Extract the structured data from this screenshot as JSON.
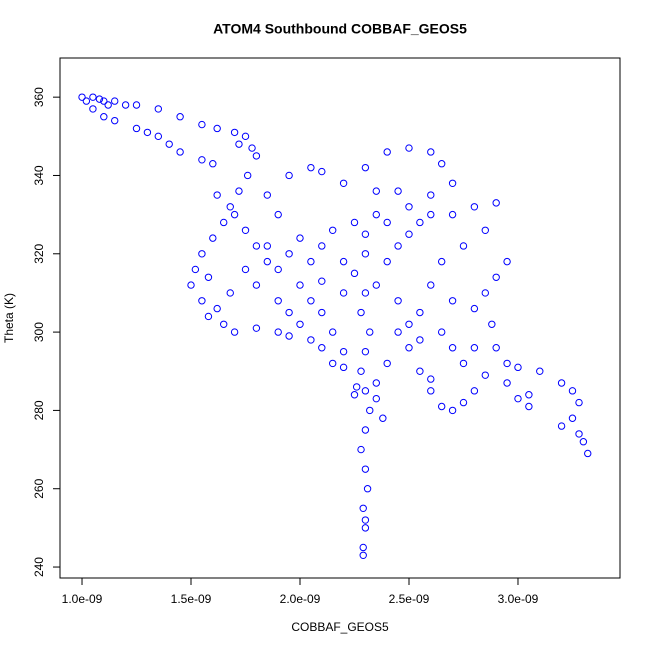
{
  "chart_data": {
    "type": "scatter",
    "title": "ATOM4 Southbound COBBAF_GEOS5",
    "xlabel": "COBBAF_GEOS5",
    "ylabel": "Theta (K)",
    "color": "#0000ff",
    "xlim": [
      8.99e-10,
      3.468e-09
    ],
    "ylim": [
      237.2,
      370
    ],
    "xticks": [
      {
        "value": 1e-09,
        "label": "1.0e-09"
      },
      {
        "value": 1.5e-09,
        "label": "1.5e-09"
      },
      {
        "value": 2e-09,
        "label": "2.0e-09"
      },
      {
        "value": 2.5e-09,
        "label": "2.5e-09"
      },
      {
        "value": 3e-09,
        "label": "3.0e-09"
      }
    ],
    "yticks": [
      240,
      260,
      280,
      300,
      320,
      340,
      360
    ],
    "x": [
      1e-09,
      1.02e-09,
      1.05e-09,
      1.08e-09,
      1.1e-09,
      1.12e-09,
      1.15e-09,
      1.2e-09,
      1.05e-09,
      1.1e-09,
      1.15e-09,
      1.25e-09,
      1.3e-09,
      1.35e-09,
      1.4e-09,
      1.45e-09,
      1.55e-09,
      1.6e-09,
      1.25e-09,
      1.35e-09,
      1.45e-09,
      1.55e-09,
      1.62e-09,
      1.7e-09,
      1.75e-09,
      1.72e-09,
      1.78e-09,
      1.8e-09,
      1.76e-09,
      1.72e-09,
      1.68e-09,
      1.65e-09,
      1.6e-09,
      1.55e-09,
      1.52e-09,
      1.5e-09,
      1.55e-09,
      1.58e-09,
      1.65e-09,
      1.7e-09,
      1.8e-09,
      1.9e-09,
      1.95e-09,
      2.05e-09,
      1.62e-09,
      1.7e-09,
      1.75e-09,
      1.8e-09,
      1.85e-09,
      1.9e-09,
      1.95e-09,
      2e-09,
      1.9e-09,
      1.85e-09,
      1.95e-09,
      2.05e-09,
      2.1e-09,
      2.2e-09,
      2.3e-09,
      2.35e-09,
      2.3e-09,
      2.25e-09,
      2.3e-09,
      2.28e-09,
      2.32e-09,
      2.3e-09,
      2.28e-09,
      2.3e-09,
      2.32e-09,
      2.3e-09,
      2.28e-09,
      2.3e-09,
      2.31e-09,
      2.29e-09,
      2.3e-09,
      2.29e-09,
      2.29e-09,
      2.3e-09,
      2.26e-09,
      2.35e-09,
      2.4e-09,
      2.2e-09,
      2.15e-09,
      2.1e-09,
      2.2e-09,
      2.35e-09,
      2.4e-09,
      2.45e-09,
      2.5e-09,
      2.55e-09,
      2.6e-09,
      2.4e-09,
      2.5e-09,
      2.6e-09,
      2.65e-09,
      2.7e-09,
      2.6e-09,
      2.5e-09,
      2.45e-09,
      2.35e-09,
      2.25e-09,
      2.15e-09,
      2.1e-09,
      2.05e-09,
      2e-09,
      2.1e-09,
      2.2e-09,
      2.3e-09,
      2.4e-09,
      2.7e-09,
      2.8e-09,
      2.9e-09,
      2.85e-09,
      2.75e-09,
      2.65e-09,
      2.6e-09,
      2.7e-09,
      2.8e-09,
      2.85e-09,
      2.9e-09,
      2.95e-09,
      2.88e-09,
      2.9e-09,
      2.95e-09,
      3e-09,
      3.1e-09,
      3.2e-09,
      3.25e-09,
      3.28e-09,
      3.25e-09,
      3.2e-09,
      3.28e-09,
      3.3e-09,
      3.32e-09,
      3.05e-09,
      2.95e-09,
      2.85e-09,
      2.8e-09,
      2.75e-09,
      2.7e-09,
      2.65e-09,
      2.6e-09,
      2.6e-09,
      3e-09,
      3.05e-09,
      2.55e-09,
      2.5e-09,
      2.45e-09,
      2.55e-09,
      2.65e-09,
      2.7e-09,
      2.75e-09,
      2.8e-09,
      1.9e-09,
      1.95e-09,
      2e-09,
      2.05e-09,
      2.1e-09,
      2.15e-09,
      2.2e-09,
      2.25e-09,
      2.35e-09,
      2.38e-09,
      2.45e-09,
      2.5e-09,
      2.55e-09,
      1.8e-09,
      1.85e-09,
      1.75e-09,
      1.68e-09,
      1.62e-09,
      1.58e-09
    ],
    "values": [
      360,
      359,
      360,
      359.5,
      359,
      358,
      359,
      358,
      357,
      355,
      354,
      352,
      351,
      350,
      348,
      346,
      344,
      343,
      358,
      357,
      355,
      353,
      352,
      351,
      350,
      348,
      347,
      345,
      340,
      336,
      332,
      328,
      324,
      320,
      316,
      312,
      308,
      304,
      302,
      300,
      301,
      300,
      299,
      298,
      335,
      330,
      326,
      322,
      318,
      316,
      320,
      324,
      330,
      335,
      340,
      342,
      341,
      338,
      342,
      336,
      320,
      315,
      310,
      305,
      300,
      295,
      290,
      285,
      280,
      275,
      270,
      265,
      260,
      255,
      250,
      245,
      243,
      252,
      286,
      287,
      292,
      295,
      300,
      305,
      310,
      312,
      318,
      322,
      325,
      328,
      330,
      346,
      347,
      346,
      343,
      338,
      335,
      332,
      336,
      330,
      328,
      326,
      322,
      318,
      312,
      313,
      318,
      325,
      328,
      330,
      332,
      333,
      326,
      322,
      318,
      312,
      308,
      306,
      310,
      314,
      318,
      302,
      296,
      292,
      291,
      290,
      287,
      285,
      282,
      278,
      276,
      274,
      272,
      269,
      284,
      287,
      289,
      285,
      282,
      280,
      281,
      285,
      288,
      283,
      281,
      298,
      302,
      308,
      305,
      300,
      296,
      292,
      296,
      308,
      305,
      302,
      308,
      296,
      292,
      291,
      284,
      283,
      278,
      300,
      296,
      290,
      312,
      322,
      316,
      310,
      306,
      314
    ]
  }
}
